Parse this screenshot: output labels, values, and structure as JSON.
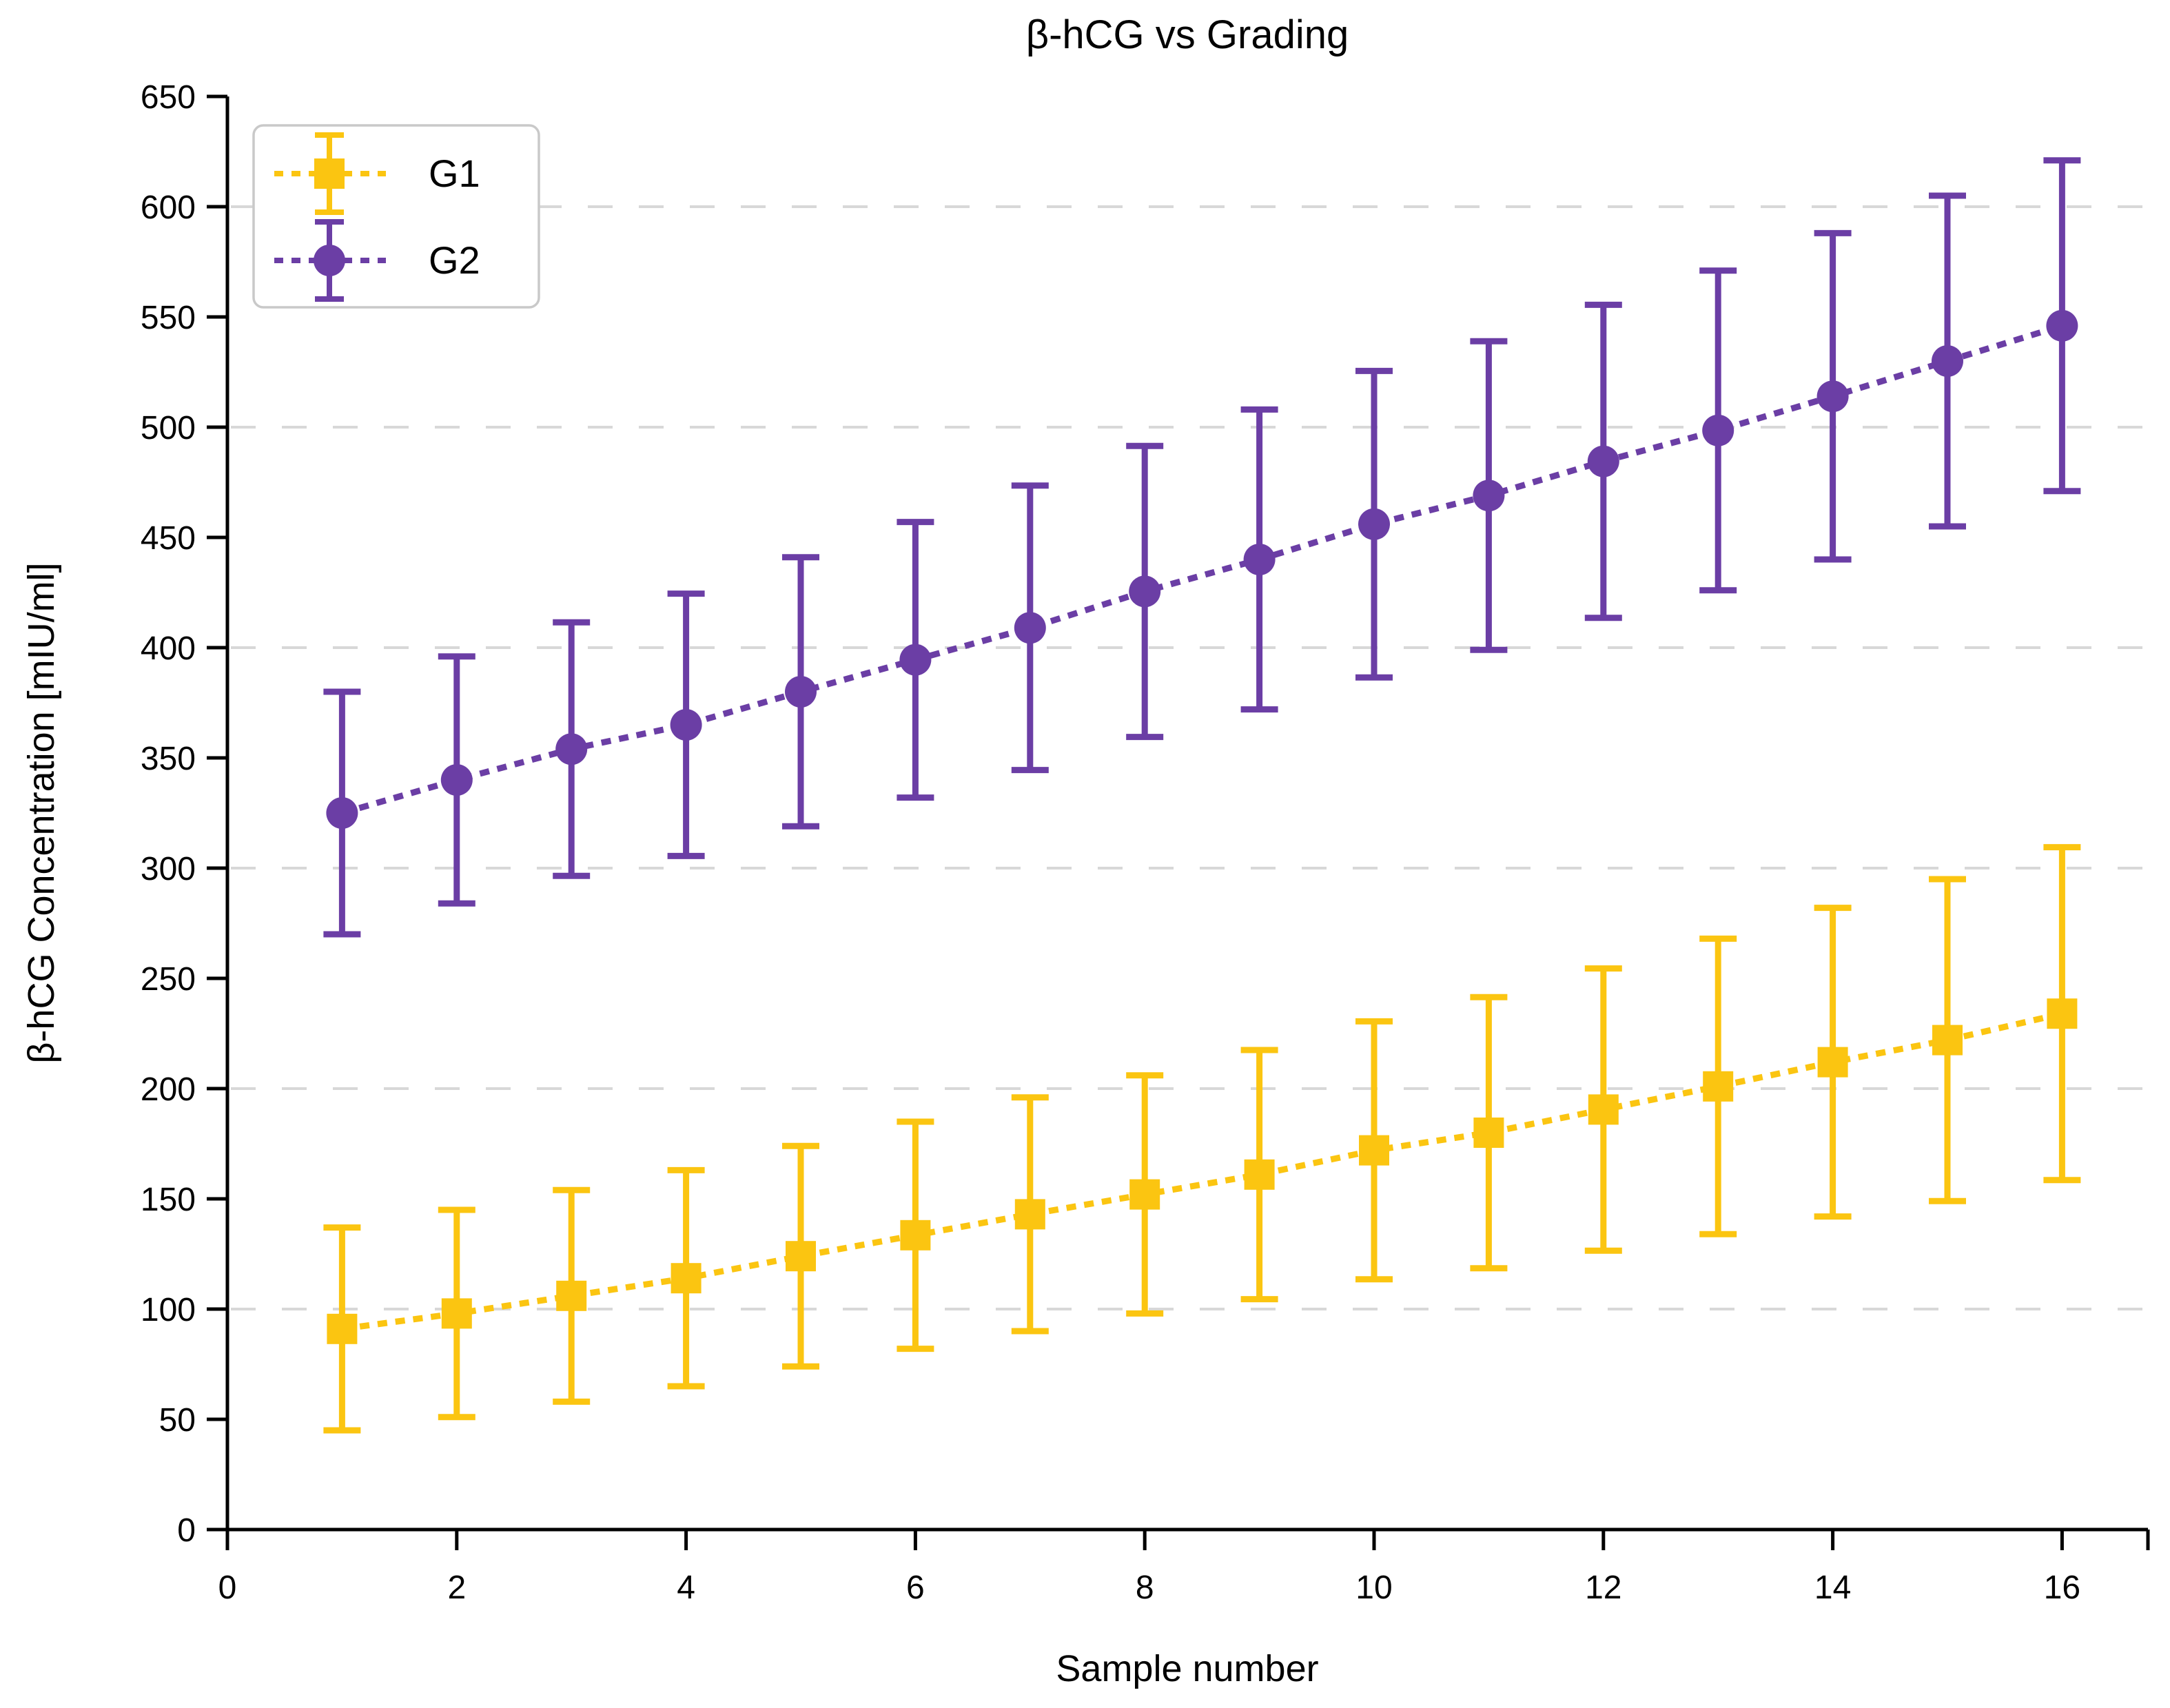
{
  "chart_data": {
    "type": "line",
    "title": "β-hCG vs Grading",
    "xlabel": "Sample number",
    "ylabel": "β-hCG Concentration [mIU/ml]",
    "x": [
      1,
      2,
      3,
      4,
      5,
      6,
      7,
      8,
      9,
      10,
      11,
      12,
      13,
      14,
      15,
      16
    ],
    "series": [
      {
        "name": "G1",
        "marker": "square",
        "color": "#FBC511",
        "line_style": "dotted",
        "values": [
          91,
          98,
          106,
          114,
          124,
          133.5,
          143,
          152,
          161,
          172,
          180,
          190.5,
          201,
          212,
          222,
          234
        ],
        "errors": [
          46,
          47,
          48,
          49,
          50,
          51.5,
          53,
          54,
          56.5,
          58.5,
          61.5,
          64,
          67,
          70,
          73,
          75.5
        ]
      },
      {
        "name": "G2",
        "marker": "circle",
        "color": "#6B3EA5",
        "line_style": "dotted",
        "values": [
          325,
          340,
          354,
          365,
          380,
          394.5,
          409,
          425.5,
          440,
          456,
          469,
          484.5,
          498.5,
          514,
          530,
          546
        ],
        "errors": [
          55,
          56,
          57.5,
          59.5,
          61,
          62.5,
          64.5,
          66,
          68,
          69.5,
          70,
          71,
          72.5,
          74,
          75,
          75
        ]
      }
    ],
    "xlim": [
      0,
      16.75
    ],
    "ylim": [
      0,
      650
    ],
    "x_ticks": [
      0,
      2,
      4,
      6,
      8,
      10,
      12,
      14,
      16
    ],
    "y_ticks": [
      0,
      50,
      100,
      150,
      200,
      250,
      300,
      350,
      400,
      450,
      500,
      550,
      600,
      650
    ],
    "y_gridlines": [
      100,
      200,
      300,
      400,
      500,
      600
    ],
    "grid": "horizontal dashed",
    "legend_position": "top-left",
    "legend_labels": [
      "G1",
      "G2"
    ],
    "colors": {
      "background": "#FFFFFF",
      "axis": "#000000",
      "grid": "#D8D8D8",
      "legend_border": "#C9C9C9",
      "tick_label": "#000000"
    }
  }
}
